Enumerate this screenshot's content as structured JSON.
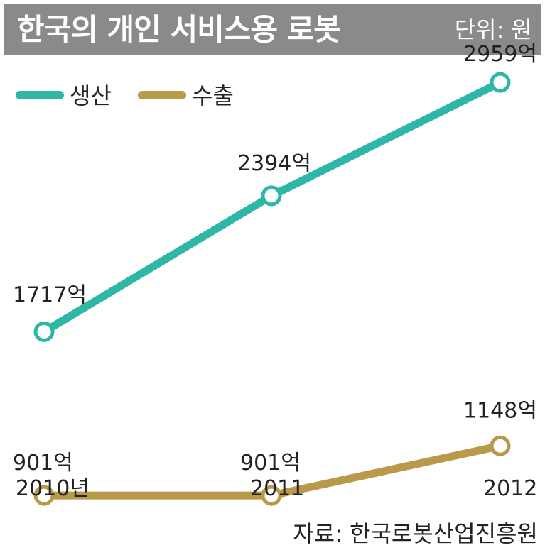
{
  "header": {
    "title": "한국의 개인 서비스용 로봇",
    "unit": "단위: 원"
  },
  "source": "자료: 한국로봇산업진흥원",
  "colors": {
    "production": "#2eb7a6",
    "export": "#b89a4a",
    "header_bg": "#8a8a8a",
    "text": "#222222",
    "background": "#ffffff"
  },
  "chart_data": {
    "type": "line",
    "categories": [
      "2010년",
      "2011",
      "2012"
    ],
    "x": [
      "2010",
      "2011",
      "2012"
    ],
    "series": [
      {
        "name": "생산",
        "values": [
          1717,
          2394,
          2959
        ],
        "labels": [
          "1717억",
          "2394억",
          "2959억"
        ],
        "color": "#2eb7a6"
      },
      {
        "name": "수출",
        "values": [
          901,
          901,
          1148
        ],
        "labels": [
          "901억",
          "901억",
          "1148억"
        ],
        "color": "#b89a4a"
      }
    ],
    "legend": {
      "placement": "top-left"
    },
    "grid": false,
    "ylim": [
      700,
      3200
    ]
  }
}
